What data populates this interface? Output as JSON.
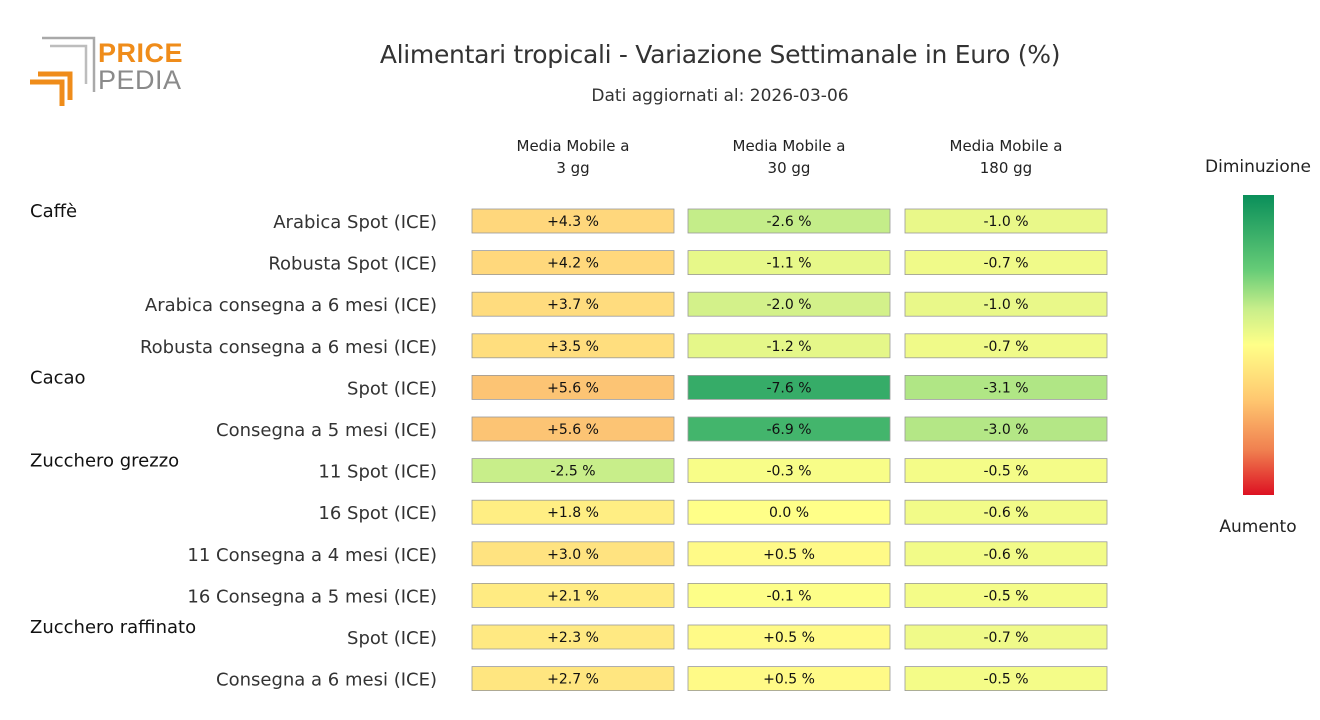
{
  "logo": {
    "price": "PRICE",
    "pedia": "PEDIA"
  },
  "header": {
    "title": "Alimentari tropicali - Variazione Settimanale in Euro (%)",
    "subtitle": "Dati aggiornati al: 2026-03-06"
  },
  "chart_data": {
    "type": "heatmap",
    "title": "Alimentari tropicali - Variazione Settimanale in Euro (%)",
    "subtitle": "Dati aggiornati al: 2026-03-06",
    "columns": [
      {
        "line1": "Media Mobile a",
        "line2": "3 gg"
      },
      {
        "line1": "Media Mobile a",
        "line2": "30 gg"
      },
      {
        "line1": "Media Mobile a",
        "line2": "180 gg"
      }
    ],
    "groups": [
      "Caffè",
      "Cacao",
      "Zucchero grezzo",
      "Zucchero raffinato"
    ],
    "rows": [
      {
        "group": "Caffè",
        "label": "Arabica Spot (ICE)",
        "values": [
          4.3,
          -2.6,
          -1.0
        ],
        "texts": [
          "+4.3 %",
          "-2.6 %",
          "-1.0 %"
        ]
      },
      {
        "group": "",
        "label": "Robusta Spot (ICE)",
        "values": [
          4.2,
          -1.1,
          -0.7
        ],
        "texts": [
          "+4.2 %",
          "-1.1 %",
          "-0.7 %"
        ]
      },
      {
        "group": "",
        "label": "Arabica consegna a 6 mesi (ICE)",
        "values": [
          3.7,
          -2.0,
          -1.0
        ],
        "texts": [
          "+3.7 %",
          "-2.0 %",
          "-1.0 %"
        ]
      },
      {
        "group": "",
        "label": "Robusta consegna a 6 mesi (ICE)",
        "values": [
          3.5,
          -1.2,
          -0.7
        ],
        "texts": [
          "+3.5 %",
          "-1.2 %",
          "-0.7 %"
        ]
      },
      {
        "group": "Cacao",
        "label": "Spot (ICE)",
        "values": [
          5.6,
          -7.6,
          -3.1
        ],
        "texts": [
          "+5.6 %",
          "-7.6 %",
          "-3.1 %"
        ]
      },
      {
        "group": "",
        "label": "Consegna a 5 mesi (ICE)",
        "values": [
          5.6,
          -6.9,
          -3.0
        ],
        "texts": [
          "+5.6 %",
          "-6.9 %",
          "-3.0 %"
        ]
      },
      {
        "group": "Zucchero grezzo",
        "label": "11 Spot (ICE)",
        "values": [
          -2.5,
          -0.3,
          -0.5
        ],
        "texts": [
          "-2.5 %",
          "-0.3 %",
          "-0.5 %"
        ]
      },
      {
        "group": "",
        "label": "16 Spot (ICE)",
        "values": [
          1.8,
          0.0,
          -0.6
        ],
        "texts": [
          "+1.8 %",
          "0.0 %",
          "-0.6 %"
        ]
      },
      {
        "group": "",
        "label": "11 Consegna a 4 mesi (ICE)",
        "values": [
          3.0,
          0.5,
          -0.6
        ],
        "texts": [
          "+3.0 %",
          "+0.5 %",
          "-0.6 %"
        ]
      },
      {
        "group": "",
        "label": "16 Consegna a 5 mesi (ICE)",
        "values": [
          2.1,
          -0.1,
          -0.5
        ],
        "texts": [
          "+2.1 %",
          "-0.1 %",
          "-0.5 %"
        ]
      },
      {
        "group": "Zucchero raffinato",
        "label": "Spot (ICE)",
        "values": [
          2.3,
          0.5,
          -0.7
        ],
        "texts": [
          "+2.3 %",
          "+0.5 %",
          "-0.7 %"
        ]
      },
      {
        "group": "",
        "label": "Consegna a 6 mesi (ICE)",
        "values": [
          2.7,
          0.5,
          -0.5
        ],
        "texts": [
          "+2.7 %",
          "+0.5 %",
          "-0.5 %"
        ]
      }
    ],
    "legend": {
      "top_label": "Diminuzione",
      "bottom_label": "Aumento"
    },
    "color_scale": {
      "min": -10,
      "max": 10,
      "stops": [
        {
          "v": -10,
          "color": "#0a8f5a"
        },
        {
          "v": -5,
          "color": "#66cc77"
        },
        {
          "v": -2.5,
          "color": "#c8ee8a"
        },
        {
          "v": 0,
          "color": "#ffff88"
        },
        {
          "v": 5,
          "color": "#ffd07a"
        },
        {
          "v": 7.5,
          "color": "#f4a060"
        },
        {
          "v": 10,
          "color": "#dd1122"
        }
      ]
    }
  }
}
